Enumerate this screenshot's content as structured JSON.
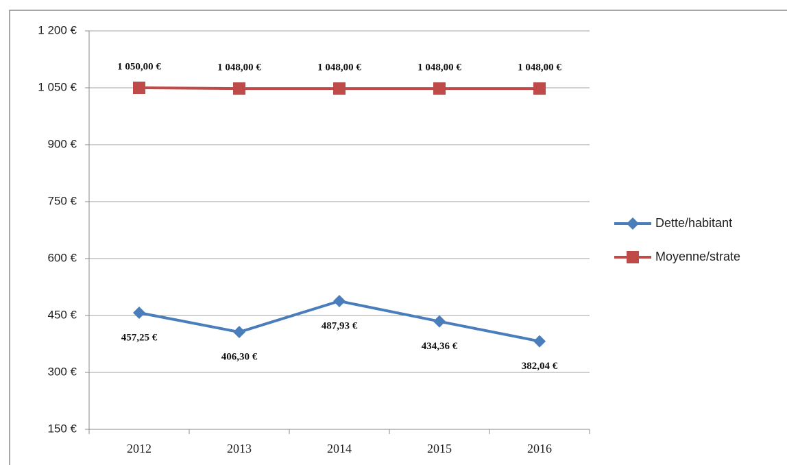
{
  "chart_data": {
    "type": "line",
    "categories": [
      "2012",
      "2013",
      "2014",
      "2015",
      "2016"
    ],
    "series": [
      {
        "name": "Dette/habitant",
        "color": "#4a7ebb",
        "marker": "diamond",
        "values": [
          457.25,
          406.3,
          487.93,
          434.36,
          382.04
        ],
        "value_labels": [
          "457,25 €",
          "406,30 €",
          "487,93 €",
          "434,36 €",
          "382,04 €"
        ]
      },
      {
        "name": "Moyenne/strate",
        "color": "#be4b48",
        "marker": "square",
        "values": [
          1050,
          1048,
          1048,
          1048,
          1048
        ],
        "value_labels": [
          "1 050,00 €",
          "1 048,00 €",
          "1 048,00 €",
          "1 048,00 €",
          "1 048,00 €"
        ]
      }
    ],
    "ylim": [
      150,
      1200
    ],
    "yticks": [
      {
        "value": 150,
        "label": "150 €"
      },
      {
        "value": 300,
        "label": "300 €"
      },
      {
        "value": 450,
        "label": "450 €"
      },
      {
        "value": 600,
        "label": "600 €"
      },
      {
        "value": 750,
        "label": "750 €"
      },
      {
        "value": 900,
        "label": "900 €"
      },
      {
        "value": 1050,
        "label": "1 050 €"
      },
      {
        "value": 1200,
        "label": "1 200 €"
      }
    ],
    "grid": true,
    "legend": "right"
  }
}
